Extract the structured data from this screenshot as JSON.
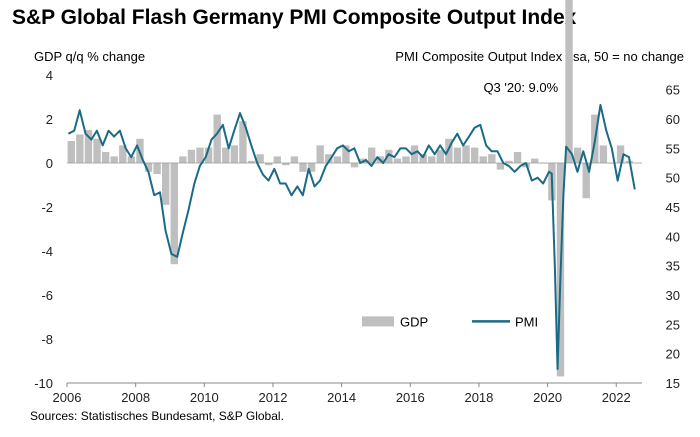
{
  "chart_data": {
    "type": "bar+line",
    "title": "S&P Global Flash Germany PMI Composite Output Index",
    "left_axis_label": "GDP q/q % change",
    "right_axis_label": "PMI Composite Output Index , sa, 50 = no change",
    "left_ylim": [
      -10,
      4
    ],
    "right_ylim": [
      15,
      67.5
    ],
    "left_ticks": [
      "4",
      "2",
      "0",
      "-2",
      "-4",
      "-6",
      "-8",
      "-10"
    ],
    "right_ticks": [
      "65",
      "60",
      "55",
      "50",
      "45",
      "40",
      "35",
      "30",
      "25",
      "20",
      "15"
    ],
    "x_ticks": [
      "2006",
      "2008",
      "2010",
      "2012",
      "2014",
      "2016",
      "2018",
      "2020",
      "2022"
    ],
    "annotation": "Q3 '20: 9.0%",
    "legend": [
      {
        "label": "GDP",
        "color": "#bfbfbf",
        "kind": "bar"
      },
      {
        "label": "PMI",
        "color": "#1a6b85",
        "kind": "line"
      }
    ],
    "series": [
      {
        "name": "GDP",
        "kind": "bar",
        "x": [
          2006.0,
          2006.25,
          2006.5,
          2006.75,
          2007.0,
          2007.25,
          2007.5,
          2007.75,
          2008.0,
          2008.25,
          2008.5,
          2008.75,
          2009.0,
          2009.25,
          2009.5,
          2009.75,
          2010.0,
          2010.25,
          2010.5,
          2010.75,
          2011.0,
          2011.25,
          2011.5,
          2011.75,
          2012.0,
          2012.25,
          2012.5,
          2012.75,
          2013.0,
          2013.25,
          2013.5,
          2013.75,
          2014.0,
          2014.25,
          2014.5,
          2014.75,
          2015.0,
          2015.25,
          2015.5,
          2015.75,
          2016.0,
          2016.25,
          2016.5,
          2016.75,
          2017.0,
          2017.25,
          2017.5,
          2017.75,
          2018.0,
          2018.25,
          2018.5,
          2018.75,
          2019.0,
          2019.25,
          2019.5,
          2019.75,
          2020.0,
          2020.25,
          2020.5,
          2020.75,
          2021.0,
          2021.25,
          2021.5,
          2021.75,
          2022.0,
          2022.25
        ],
        "values": [
          1.0,
          1.3,
          1.5,
          1.1,
          0.5,
          0.3,
          0.8,
          0.3,
          1.1,
          -0.4,
          -0.5,
          -1.9,
          -4.6,
          0.3,
          0.6,
          0.7,
          0.7,
          2.2,
          0.7,
          0.8,
          1.9,
          0.1,
          0.4,
          -0.1,
          0.3,
          -0.1,
          0.3,
          -0.4,
          -0.4,
          0.8,
          0.4,
          0.3,
          0.8,
          -0.2,
          0.2,
          0.7,
          0.3,
          0.6,
          0.2,
          0.3,
          0.8,
          0.4,
          0.3,
          0.6,
          1.1,
          0.7,
          0.8,
          0.7,
          0.3,
          0.4,
          -0.3,
          0.1,
          0.5,
          -0.2,
          0.2,
          0.0,
          -1.7,
          -9.7,
          9.0,
          0.7,
          -1.6,
          2.2,
          0.8,
          0.0,
          0.8,
          0.1
        ]
      },
      {
        "name": "PMI",
        "kind": "line",
        "x": [
          2006.0,
          2006.17,
          2006.33,
          2006.5,
          2006.67,
          2006.83,
          2007.0,
          2007.17,
          2007.33,
          2007.5,
          2007.67,
          2007.83,
          2008.0,
          2008.17,
          2008.33,
          2008.5,
          2008.67,
          2008.83,
          2009.0,
          2009.17,
          2009.33,
          2009.5,
          2009.67,
          2009.83,
          2010.0,
          2010.17,
          2010.33,
          2010.5,
          2010.67,
          2010.83,
          2011.0,
          2011.17,
          2011.33,
          2011.5,
          2011.67,
          2011.83,
          2012.0,
          2012.17,
          2012.33,
          2012.5,
          2012.67,
          2012.83,
          2013.0,
          2013.17,
          2013.33,
          2013.5,
          2013.67,
          2013.83,
          2014.0,
          2014.17,
          2014.33,
          2014.5,
          2014.67,
          2014.83,
          2015.0,
          2015.17,
          2015.33,
          2015.5,
          2015.67,
          2015.83,
          2016.0,
          2016.17,
          2016.33,
          2016.5,
          2016.67,
          2016.83,
          2017.0,
          2017.17,
          2017.33,
          2017.5,
          2017.67,
          2017.83,
          2018.0,
          2018.17,
          2018.33,
          2018.5,
          2018.67,
          2018.83,
          2019.0,
          2019.17,
          2019.33,
          2019.5,
          2019.67,
          2019.83,
          2020.0,
          2020.08,
          2020.17,
          2020.25,
          2020.33,
          2020.42,
          2020.5,
          2020.67,
          2020.83,
          2021.0,
          2021.17,
          2021.33,
          2021.5,
          2021.67,
          2021.83,
          2022.0,
          2022.17,
          2022.33,
          2022.5
        ],
        "values": [
          57.5,
          58.0,
          61.5,
          57.5,
          56.5,
          58.0,
          55.5,
          58.0,
          57.0,
          58.0,
          55.0,
          53.5,
          55.5,
          53.0,
          51.0,
          47.0,
          47.5,
          41.0,
          37.0,
          36.5,
          40.5,
          44.5,
          49.0,
          52.0,
          53.5,
          56.5,
          57.5,
          59.0,
          55.0,
          58.0,
          61.0,
          58.5,
          55.5,
          52.5,
          50.5,
          49.5,
          51.5,
          49.0,
          49.0,
          47.0,
          48.5,
          47.0,
          51.5,
          48.5,
          49.5,
          52.0,
          53.5,
          55.0,
          55.5,
          54.5,
          55.0,
          52.5,
          53.0,
          52.0,
          53.5,
          52.5,
          54.0,
          53.5,
          55.0,
          55.0,
          54.0,
          54.5,
          53.5,
          55.5,
          54.0,
          55.5,
          54.0,
          56.0,
          57.5,
          55.5,
          57.0,
          58.5,
          59.0,
          55.5,
          54.5,
          54.5,
          52.5,
          52.0,
          51.0,
          52.0,
          52.5,
          49.5,
          50.0,
          49.0,
          51.0,
          50.7,
          35.0,
          17.4,
          32.3,
          47.0,
          55.3,
          54.0,
          51.0,
          54.5,
          51.0,
          56.0,
          62.4,
          58.0,
          55.0,
          49.5,
          54.0,
          53.5,
          48.0
        ]
      }
    ]
  },
  "source": "Sources: Statistisches Bundesamt, S&P Global."
}
